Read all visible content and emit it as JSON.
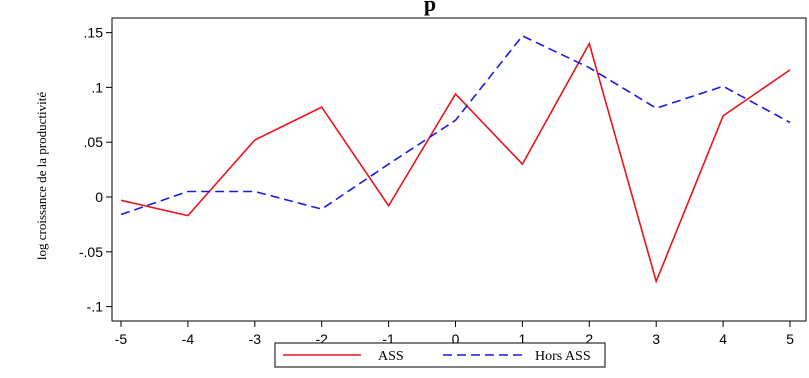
{
  "chart_data": {
    "type": "line",
    "title": "p",
    "xlabel": "",
    "ylabel": "log croissance de la productivité",
    "x": [
      -5,
      -4,
      -3,
      -2,
      -1,
      0,
      1,
      2,
      3,
      4,
      5
    ],
    "x_ticks": [
      "-5",
      "-4",
      "-3",
      "-2",
      "-1",
      "0",
      "1",
      "2",
      "3",
      "4",
      "5"
    ],
    "y_ticks": [
      {
        "value": 0.15,
        "label": ".15"
      },
      {
        "value": 0.1,
        "label": ".1"
      },
      {
        "value": 0.05,
        "label": ".05"
      },
      {
        "value": 0,
        "label": "0"
      },
      {
        "value": -0.05,
        "label": "-.05"
      },
      {
        "value": -0.1,
        "label": "-.1"
      }
    ],
    "xlim": [
      -5,
      5
    ],
    "ylim": [
      -0.1,
      0.15
    ],
    "grid": false,
    "legend_position": "bottom",
    "series": [
      {
        "name": "ASS",
        "color": "#e8141b",
        "style": "solid",
        "values": [
          -0.003,
          -0.017,
          0.052,
          0.082,
          -0.008,
          0.094,
          0.03,
          0.14,
          -0.077,
          0.074,
          0.116
        ]
      },
      {
        "name": "Hors ASS",
        "color": "#1a1ae6",
        "style": "dashed",
        "values": [
          -0.016,
          0.005,
          0.005,
          -0.011,
          0.03,
          0.07,
          0.147,
          0.118,
          0.081,
          0.101,
          0.068
        ]
      }
    ]
  }
}
